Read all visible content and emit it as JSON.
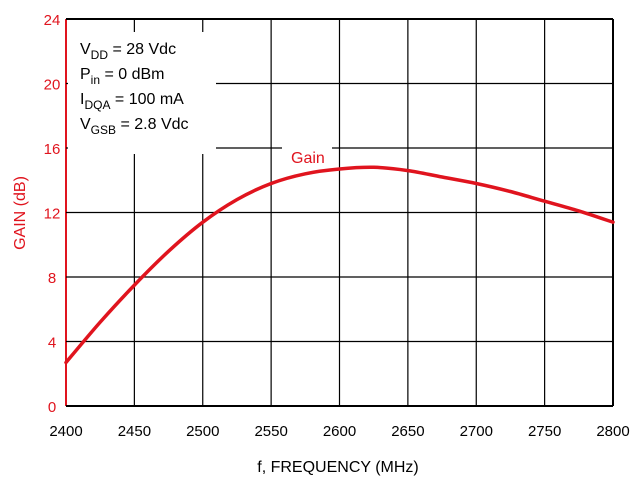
{
  "chart_data": {
    "type": "line",
    "title": "",
    "xlabel": "f, FREQUENCY (MHz)",
    "ylabel": "GAIN (dB)",
    "xlim": [
      2400,
      2800
    ],
    "ylim": [
      0,
      24
    ],
    "x_ticks": [
      "2400",
      "2450",
      "2500",
      "2550",
      "2600",
      "2650",
      "2700",
      "2750",
      "2800"
    ],
    "y_ticks": [
      "0",
      "4",
      "8",
      "12",
      "16",
      "20",
      "24"
    ],
    "grid": true,
    "colors": {
      "gain": "#e0141e",
      "grid": "#000000",
      "axis_y": "#e0141e"
    },
    "series": [
      {
        "name": "Gain",
        "x": [
          2400,
          2425,
          2450,
          2475,
          2500,
          2525,
          2550,
          2575,
          2600,
          2625,
          2650,
          2675,
          2700,
          2725,
          2750,
          2775,
          2800
        ],
        "values": [
          2.7,
          5.2,
          7.5,
          9.6,
          11.4,
          12.8,
          13.8,
          14.4,
          14.7,
          14.8,
          14.6,
          14.2,
          13.8,
          13.3,
          12.7,
          12.1,
          11.4
        ]
      }
    ],
    "annotations": [
      {
        "text": "Gain",
        "attached_to": "series-gain"
      }
    ],
    "conditions": [
      {
        "main": "V",
        "sub": "DD",
        "rest": " = 28 Vdc"
      },
      {
        "main": "P",
        "sub": "in",
        "rest": " = 0 dBm"
      },
      {
        "main": "I",
        "sub": "DQA",
        "rest": " = 100 mA"
      },
      {
        "main": "V",
        "sub": "GSB",
        "rest": " = 2.8 Vdc"
      }
    ]
  }
}
